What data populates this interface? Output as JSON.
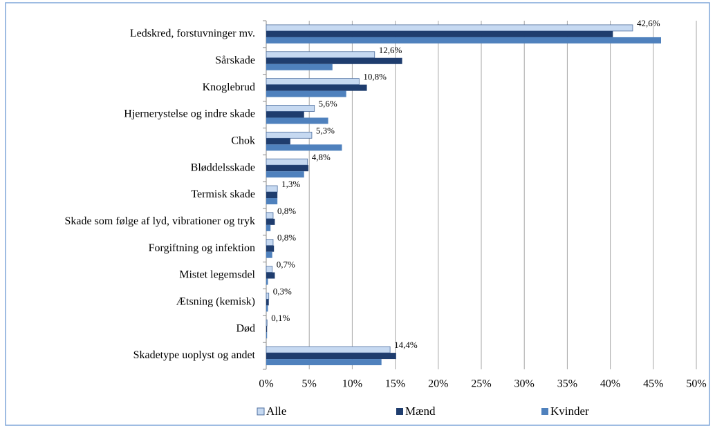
{
  "chart_data": {
    "type": "bar",
    "orientation": "horizontal",
    "categories": [
      "Ledskred, forstuvninger mv.",
      "Sårskade",
      "Knoglebrud",
      "Hjernerystelse og indre skade",
      "Chok",
      "Bløddelsskade",
      "Termisk skade",
      "Skade som følge af lyd, vibrationer og tryk",
      "Forgiftning og infektion",
      "Mistet legemsdel",
      "Ætsning (kemisk)",
      "Død",
      "Skadetype uoplyst og andet"
    ],
    "series": [
      {
        "name": "Alle",
        "color": "#c6d9f1",
        "values": [
          42.6,
          12.6,
          10.8,
          5.6,
          5.3,
          4.8,
          1.3,
          0.8,
          0.8,
          0.7,
          0.3,
          0.1,
          14.4
        ],
        "value_labels": [
          "42,6%",
          "12,6%",
          "10,8%",
          "5,6%",
          "5,3%",
          "4,8%",
          "1,3%",
          "0,8%",
          "0,8%",
          "0,7%",
          "0,3%",
          "0,1%",
          "14,4%"
        ]
      },
      {
        "name": "Mænd",
        "color": "#1f3d6e",
        "values": [
          40.3,
          15.8,
          11.7,
          4.4,
          2.8,
          4.9,
          1.3,
          1.0,
          0.9,
          1.0,
          0.3,
          0.1,
          15.1
        ]
      },
      {
        "name": "Kvinder",
        "color": "#4f81bd",
        "values": [
          45.9,
          7.7,
          9.3,
          7.2,
          8.8,
          4.4,
          1.3,
          0.5,
          0.7,
          0.2,
          0.2,
          0.1,
          13.4
        ]
      }
    ],
    "xlim": [
      0,
      50
    ],
    "xticks": [
      {
        "value": 0,
        "label": "0%"
      },
      {
        "value": 5,
        "label": "5%"
      },
      {
        "value": 10,
        "label": "10%"
      },
      {
        "value": 15,
        "label": "15%"
      },
      {
        "value": 20,
        "label": "20%"
      },
      {
        "value": 25,
        "label": "25%"
      },
      {
        "value": 30,
        "label": "30%"
      },
      {
        "value": 35,
        "label": "35%"
      },
      {
        "value": 40,
        "label": "40%"
      },
      {
        "value": 45,
        "label": "45%"
      },
      {
        "value": 50,
        "label": "50%"
      }
    ],
    "grid": true,
    "legend": "bottom"
  }
}
